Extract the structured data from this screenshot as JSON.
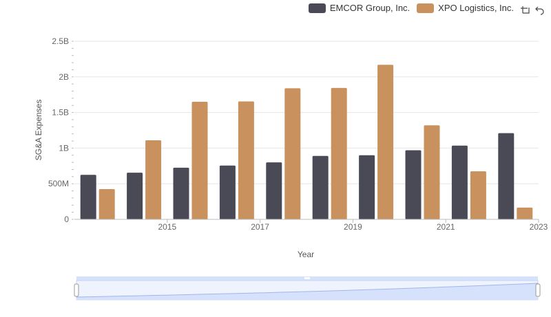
{
  "legend": {
    "series_a": "EMCOR Group, Inc.",
    "series_b": "XPO Logistics, Inc."
  },
  "toolbar": {
    "icons": [
      "zoom-icon",
      "reset-icon"
    ]
  },
  "colors": {
    "emcor": "#4a4a57",
    "xpo": "#c8915d",
    "grid": "#e6e6e6",
    "slider_fill": "#d6e2fb",
    "slider_border": "#b9c8ee"
  },
  "chart_data": {
    "type": "bar",
    "categories": [
      2014,
      2015,
      2016,
      2017,
      2018,
      2019,
      2020,
      2021,
      2022,
      2023
    ],
    "x_tick_labels": [
      "2015",
      "2017",
      "2019",
      "2021",
      "2023"
    ],
    "series": [
      {
        "name": "EMCOR Group, Inc.",
        "values": [
          625000000,
          655000000,
          725000000,
          755000000,
          800000000,
          890000000,
          900000000,
          970000000,
          1035000000,
          1210000000
        ]
      },
      {
        "name": "XPO Logistics, Inc.",
        "values": [
          425000000,
          1110000000,
          1650000000,
          1655000000,
          1840000000,
          1845000000,
          2170000000,
          1320000000,
          675000000,
          165000000
        ]
      }
    ],
    "y_ticks": [
      {
        "value": 0,
        "label": "0"
      },
      {
        "value": 500000000,
        "label": "500M"
      },
      {
        "value": 1000000000,
        "label": "1B"
      },
      {
        "value": 1500000000,
        "label": "1.5B"
      },
      {
        "value": 2000000000,
        "label": "2B"
      },
      {
        "value": 2500000000,
        "label": "2.5B"
      }
    ],
    "ylim": [
      0,
      2500000000
    ],
    "xlabel": "Year",
    "ylabel": "SG&A Expenses",
    "legend_position": "top-right",
    "grid": true
  }
}
